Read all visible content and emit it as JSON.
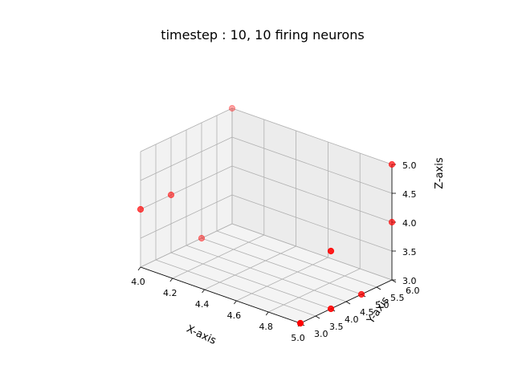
{
  "chart_data": {
    "type": "scatter",
    "projection": "3d",
    "title": "timestep : 10, 10 firing neurons",
    "xlabel": "X-axis",
    "ylabel": "Y-axis",
    "zlabel": "Z-axis",
    "xlim": [
      4.0,
      5.0
    ],
    "ylim": [
      3.0,
      6.0
    ],
    "zlim": [
      3.0,
      5.0
    ],
    "xticks": [
      "4.0",
      "4.2",
      "4.4",
      "4.6",
      "4.8",
      "5.0"
    ],
    "yticks": [
      "3.0",
      "3.5",
      "4.0",
      "4.5",
      "5.0",
      "5.5",
      "6.0"
    ],
    "zticks": [
      "3.0",
      "3.5",
      "4.0",
      "4.5",
      "5.0"
    ],
    "grid": true,
    "marker_color": "#ff0000",
    "points": [
      {
        "x": 4,
        "y": 3,
        "z": 4
      },
      {
        "x": 4,
        "y": 4,
        "z": 4
      },
      {
        "x": 4,
        "y": 5,
        "z": 3
      },
      {
        "x": 4,
        "y": 6,
        "z": 5
      },
      {
        "x": 5,
        "y": 3,
        "z": 3
      },
      {
        "x": 5,
        "y": 4,
        "z": 3
      },
      {
        "x": 5,
        "y": 5,
        "z": 3
      },
      {
        "x": 5,
        "y": 4,
        "z": 4
      },
      {
        "x": 5,
        "y": 6,
        "z": 4
      },
      {
        "x": 5,
        "y": 6,
        "z": 5
      }
    ]
  }
}
